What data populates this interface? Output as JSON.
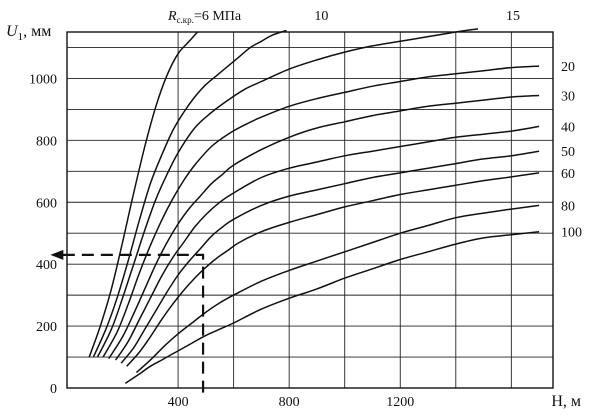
{
  "chart_data": {
    "type": "line",
    "title": "",
    "xlabel": "H, м",
    "ylabel_symbol": "U",
    "ylabel_sub": "1",
    "ylabel_unit": ", мм",
    "xlim": [
      0,
      1750
    ],
    "ylim": [
      0,
      1150
    ],
    "x_ticks": [
      400,
      800,
      1200
    ],
    "y_ticks": [
      0,
      200,
      400,
      600,
      800,
      1000
    ],
    "x_grid": [
      400,
      600,
      800,
      1000,
      1200,
      1400,
      1600
    ],
    "y_grid": [
      100,
      200,
      300,
      400,
      500,
      600,
      700,
      800,
      900,
      1000,
      1100
    ],
    "grid": true,
    "param_symbol": "R",
    "param_sub": "с.кр.",
    "param_first_label": "=6 МПа",
    "series": [
      {
        "name": "6",
        "label": "",
        "label_pos": "top",
        "x": [
          80,
          120,
          160,
          200,
          240,
          280,
          320,
          360,
          400,
          440,
          470
        ],
        "y": [
          100,
          200,
          320,
          470,
          630,
          780,
          910,
          1010,
          1080,
          1120,
          1150
        ]
      },
      {
        "name": "10",
        "label": "10",
        "label_pos": "top",
        "x": [
          95,
          140,
          180,
          220,
          260,
          300,
          340,
          380,
          420,
          460,
          500,
          540,
          580,
          620,
          660,
          700,
          740,
          790
        ],
        "y": [
          100,
          190,
          290,
          410,
          540,
          660,
          750,
          830,
          890,
          940,
          980,
          1010,
          1040,
          1070,
          1100,
          1120,
          1140,
          1155
        ]
      },
      {
        "name": "15",
        "label": "15",
        "label_pos": "top",
        "x": [
          110,
          160,
          200,
          240,
          280,
          320,
          360,
          400,
          460,
          520,
          580,
          640,
          700,
          800,
          900,
          1000,
          1100,
          1200,
          1300,
          1400,
          1480
        ],
        "y": [
          100,
          190,
          290,
          400,
          510,
          610,
          690,
          760,
          840,
          890,
          930,
          965,
          990,
          1030,
          1060,
          1085,
          1105,
          1120,
          1135,
          1150,
          1160
        ]
      },
      {
        "name": "20",
        "label": "20",
        "label_pos": "right",
        "x": [
          130,
          180,
          220,
          260,
          300,
          340,
          380,
          420,
          460,
          520,
          580,
          640,
          700,
          800,
          900,
          1000,
          1100,
          1200,
          1300,
          1400,
          1500,
          1600,
          1700
        ],
        "y": [
          100,
          180,
          270,
          370,
          460,
          540,
          610,
          670,
          720,
          780,
          820,
          850,
          875,
          910,
          935,
          955,
          975,
          990,
          1005,
          1015,
          1025,
          1035,
          1040
        ]
      },
      {
        "name": "30",
        "label": "30",
        "label_pos": "right",
        "x": [
          150,
          200,
          240,
          280,
          320,
          360,
          400,
          440,
          480,
          520,
          560,
          600,
          700,
          800,
          900,
          1000,
          1100,
          1200,
          1300,
          1400,
          1500,
          1600,
          1700
        ],
        "y": [
          95,
          165,
          240,
          320,
          400,
          470,
          530,
          580,
          620,
          660,
          690,
          720,
          770,
          810,
          840,
          860,
          880,
          895,
          910,
          920,
          930,
          940,
          945
        ]
      },
      {
        "name": "40",
        "label": "40",
        "label_pos": "right",
        "x": [
          175,
          220,
          260,
          300,
          340,
          380,
          420,
          460,
          500,
          550,
          600,
          700,
          800,
          900,
          1000,
          1100,
          1200,
          1300,
          1400,
          1500,
          1600,
          1700
        ],
        "y": [
          90,
          150,
          220,
          290,
          360,
          420,
          470,
          520,
          560,
          600,
          630,
          680,
          710,
          730,
          750,
          765,
          780,
          795,
          810,
          820,
          830,
          845
        ]
      },
      {
        "name": "50",
        "label": "50",
        "label_pos": "right",
        "x": [
          195,
          240,
          280,
          320,
          360,
          400,
          440,
          480,
          520,
          560,
          600,
          700,
          800,
          900,
          1000,
          1100,
          1200,
          1300,
          1400,
          1500,
          1600,
          1700
        ],
        "y": [
          80,
          130,
          190,
          250,
          310,
          365,
          410,
          450,
          490,
          520,
          545,
          590,
          620,
          640,
          660,
          680,
          695,
          710,
          725,
          740,
          750,
          765
        ]
      },
      {
        "name": "60",
        "label": "60",
        "label_pos": "right",
        "x": [
          215,
          260,
          300,
          340,
          380,
          420,
          460,
          500,
          540,
          580,
          620,
          700,
          800,
          900,
          1000,
          1100,
          1200,
          1300,
          1400,
          1500,
          1600,
          1700
        ],
        "y": [
          70,
          115,
          165,
          220,
          270,
          315,
          355,
          390,
          420,
          445,
          470,
          505,
          535,
          560,
          585,
          605,
          625,
          640,
          655,
          670,
          682,
          695
        ]
      },
      {
        "name": "80",
        "label": "80",
        "label_pos": "right",
        "x": [
          250,
          300,
          350,
          400,
          450,
          500,
          550,
          600,
          700,
          800,
          900,
          1000,
          1100,
          1200,
          1300,
          1400,
          1500,
          1600,
          1700
        ],
        "y": [
          50,
          90,
          135,
          175,
          210,
          245,
          275,
          300,
          345,
          380,
          410,
          440,
          470,
          500,
          525,
          550,
          565,
          578,
          590
        ]
      },
      {
        "name": "100",
        "label": "100",
        "label_pos": "right",
        "x": [
          210,
          260,
          300,
          350,
          400,
          450,
          500,
          550,
          600,
          700,
          800,
          900,
          1000,
          1100,
          1200,
          1300,
          1400,
          1500,
          1600,
          1700
        ],
        "y": [
          15,
          45,
          70,
          95,
          120,
          145,
          170,
          190,
          210,
          255,
          290,
          320,
          355,
          385,
          415,
          440,
          465,
          485,
          495,
          505
        ]
      }
    ],
    "example_path": {
      "x": [
        490,
        490,
        -60
      ],
      "y": [
        -15,
        430,
        430
      ]
    }
  }
}
